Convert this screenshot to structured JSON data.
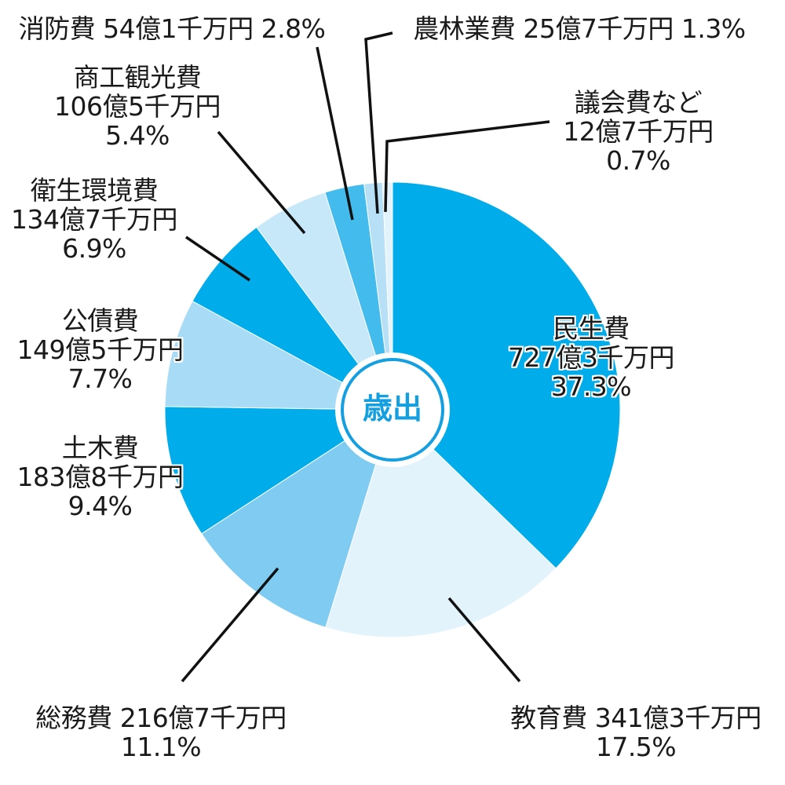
{
  "chart_data": {
    "type": "pie",
    "title": "歳出",
    "donut_center_label": "歳出",
    "start_angle": "12 o'clock",
    "direction": "clockwise",
    "categories": [
      "民生費",
      "教育費",
      "総務費",
      "土木費",
      "公債費",
      "衛生環境費",
      "商工観光費",
      "消防費",
      "農林業費",
      "議会費など"
    ],
    "amounts": [
      "727億3千万円",
      "341億3千万円",
      "216億7千万円",
      "183億8千万円",
      "149億5千万円",
      "134億7千万円",
      "106億5千万円",
      "54億1千万円",
      "25億7千万円",
      "12億7千万円"
    ],
    "amounts_oku_yen": [
      727.3,
      341.3,
      216.7,
      183.8,
      149.5,
      134.7,
      106.5,
      54.1,
      25.7,
      12.7
    ],
    "values": [
      37.3,
      17.5,
      11.1,
      9.4,
      7.7,
      6.9,
      5.4,
      2.8,
      1.3,
      0.7
    ],
    "percent_labels": [
      "37.3%",
      "17.5%",
      "11.1%",
      "9.4%",
      "7.7%",
      "6.9%",
      "5.4%",
      "2.8%",
      "1.3%",
      "0.7%"
    ],
    "colors": [
      "#00adea",
      "#e3f3fc",
      "#7fcbf1",
      "#00adea",
      "#a8dbf5",
      "#00adea",
      "#c7e8f9",
      "#43bced",
      "#b7e0f7",
      "#e3f3fc"
    ],
    "legend": "none (leader-line labels)"
  },
  "labels": {
    "minsei": {
      "name": "民生費",
      "amount": "727億3千万円",
      "pct": "37.3%"
    },
    "kyoiku": {
      "name": "教育費",
      "amount": "341億3千万円",
      "pct": "17.5%"
    },
    "somu": {
      "name": "総務費",
      "amount": "216億7千万円",
      "pct": "11.1%"
    },
    "doboku": {
      "name": "土木費",
      "amount": "183億8千万円",
      "pct": "9.4%"
    },
    "kosai": {
      "name": "公債費",
      "amount": "149億5千万円",
      "pct": "7.7%"
    },
    "eisei": {
      "name": "衛生環境費",
      "amount": "134億7千万円",
      "pct": "6.9%"
    },
    "shoko": {
      "name": "商工観光費",
      "amount": "106億5千万円",
      "pct": "5.4%"
    },
    "shobo": {
      "name": "消防費",
      "amount": "54億1千万円",
      "pct": "2.8%"
    },
    "norin": {
      "name": "農林業費",
      "amount": "25億7千万円",
      "pct": "1.3%"
    },
    "gikai": {
      "name": "議会費など",
      "amount": "12億7千万円",
      "pct": "0.7%"
    }
  },
  "center": {
    "label": "歳出"
  },
  "colors": {
    "center_ring": "#14a0e0",
    "leader_line": "#111111"
  }
}
